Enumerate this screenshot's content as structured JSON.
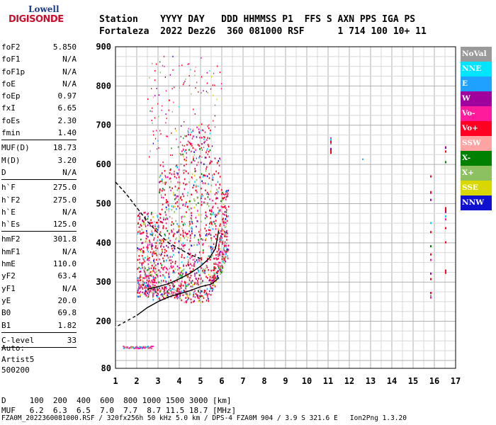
{
  "logo": {
    "top": "Lowell",
    "bottom": "DIGISONDE"
  },
  "header": {
    "line1": "Station    YYYY DAY   DDD HHMMSS P1  FFS S AXN PPS IGA PS",
    "line2": "Fortaleza  2022 Dez26  360 081000 RSF      1 714 100 10+ 11"
  },
  "params": [
    [
      {
        "k": "foF2",
        "v": "5.850"
      },
      {
        "k": "foF1",
        "v": "N/A"
      },
      {
        "k": "foF1p",
        "v": "N/A"
      },
      {
        "k": "foE",
        "v": "N/A"
      },
      {
        "k": "foEp",
        "v": "0.97"
      },
      {
        "k": "fxI",
        "v": "6.65"
      },
      {
        "k": "foEs",
        "v": "2.30"
      },
      {
        "k": "fmin",
        "v": "1.40"
      }
    ],
    [
      {
        "k": "MUF(D)",
        "v": "18.73"
      },
      {
        "k": "M(D)",
        "v": "3.20"
      },
      {
        "k": "D",
        "v": "N/A"
      }
    ],
    [
      {
        "k": "h`F",
        "v": "275.0"
      },
      {
        "k": "h`F2",
        "v": "275.0"
      },
      {
        "k": "h`E",
        "v": "N/A"
      },
      {
        "k": "h`Es",
        "v": "125.0"
      }
    ],
    [
      {
        "k": "hmF2",
        "v": "301.8"
      },
      {
        "k": "hmF1",
        "v": "N/A"
      },
      {
        "k": "hmE",
        "v": "110.0"
      },
      {
        "k": "yF2",
        "v": "63.4"
      },
      {
        "k": "yF1",
        "v": "N/A"
      },
      {
        "k": "yE",
        "v": "20.0"
      },
      {
        "k": "B0",
        "v": "69.8"
      },
      {
        "k": "B1",
        "v": "1.82"
      }
    ],
    [
      {
        "k": "C-level",
        "v": "33"
      }
    ]
  ],
  "auto": {
    "line1": "Auto:",
    "line2": "Artist5",
    "line3": "500200"
  },
  "legend": [
    {
      "label": "NoVal",
      "color": "#9a9a9a"
    },
    {
      "label": "NNE",
      "color": "#00e5ff"
    },
    {
      "label": "E",
      "color": "#1ea1ff"
    },
    {
      "label": "W",
      "color": "#a0009c"
    },
    {
      "label": "Vo-",
      "color": "#ff1c9c"
    },
    {
      "label": "Vo+",
      "color": "#ff0022"
    },
    {
      "label": "SSW",
      "color": "#ffa3a3"
    },
    {
      "label": "X-",
      "color": "#008000"
    },
    {
      "label": "X+",
      "color": "#8dc060"
    },
    {
      "label": "SSE",
      "color": "#d8d800"
    },
    {
      "label": "NNW",
      "color": "#1010d0"
    }
  ],
  "footer": {
    "line1": "D     100  200  400  600  800 1000 1500 3000 [km]",
    "line2": "MUF   6.2  6.3  6.5  7.0  7.7  8.7 11.5 18.7 [MHz]",
    "line3": "FZA0M_2022360081000.RSF / 320fx256h 50 kHz 5.0 km / DPS-4 FZA0M 904 / 3.9 S 321.6 E   Ion2Png 1.3.20"
  },
  "chart_data": {
    "type": "scatter",
    "title": "",
    "xlabel": "",
    "ylabel": "",
    "xlim": [
      1,
      17
    ],
    "ylim": [
      80,
      900
    ],
    "x_ticks": [
      1,
      2,
      3,
      4,
      5,
      6,
      7,
      8,
      9,
      10,
      11,
      12,
      13,
      14,
      15,
      16,
      17
    ],
    "y_ticks": [
      80,
      200,
      300,
      400,
      500,
      600,
      700,
      800,
      900
    ],
    "grid": true,
    "profile_curve": {
      "x": [
        2.5,
        3.0,
        3.5,
        4.0,
        4.5,
        5.0,
        5.4,
        5.7,
        5.85
      ],
      "y": [
        282,
        288,
        296,
        308,
        322,
        340,
        360,
        385,
        430
      ]
    },
    "profile_dashed_top": {
      "x": [
        1.0,
        1.5,
        2.0,
        2.5,
        3.0,
        3.5,
        4.0,
        4.5,
        5.0
      ],
      "y": [
        555,
        525,
        490,
        455,
        425,
        400,
        385,
        370,
        360
      ]
    },
    "profile_lower": {
      "x": [
        1.0,
        1.5,
        2.0,
        2.5,
        3.0,
        3.5,
        4.0,
        4.5,
        5.0,
        5.5,
        5.75,
        5.85
      ],
      "y": [
        185,
        200,
        215,
        235,
        250,
        262,
        270,
        278,
        288,
        295,
        305,
        312
      ]
    },
    "echo_clusters": [
      {
        "x": [
          2.0,
          6.3
        ],
        "y": [
          240,
          700
        ],
        "kind": "F-trace"
      },
      {
        "x": [
          1.3,
          2.8
        ],
        "y": [
          130,
          140
        ],
        "kind": "Es"
      },
      {
        "x": [
          11.1,
          11.1
        ],
        "y": [
          620,
          670
        ],
        "kind": "isolated"
      },
      {
        "x": [
          15.8,
          15.8
        ],
        "y": [
          240,
          580
        ],
        "kind": "isolated"
      },
      {
        "x": [
          16.5,
          16.5
        ],
        "y": [
          280,
          670
        ],
        "kind": "isolated"
      }
    ]
  }
}
